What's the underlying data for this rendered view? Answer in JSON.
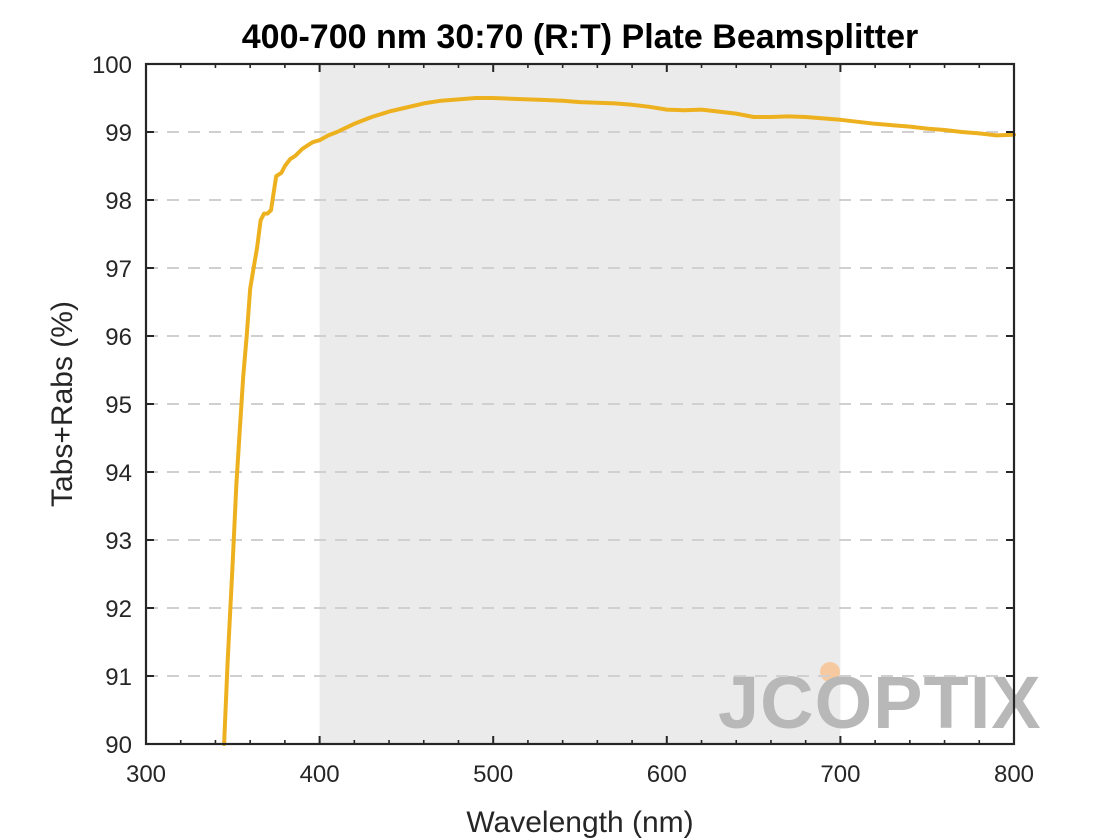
{
  "chart_data": {
    "type": "line",
    "title": "400-700 nm 30:70 (R:T) Plate Beamsplitter",
    "xlabel": "Wavelength (nm)",
    "ylabel": "Tabs+Rabs (%)",
    "xlim": [
      300,
      800
    ],
    "ylim": [
      90,
      100
    ],
    "xticks": [
      300,
      400,
      500,
      600,
      700,
      800
    ],
    "yticks": [
      90,
      91,
      92,
      93,
      94,
      95,
      96,
      97,
      98,
      99,
      100
    ],
    "grid": "horizontal dashed",
    "highlight_band": [
      400,
      700
    ],
    "series": [
      {
        "name": "",
        "color": "#EDB120",
        "x": [
          345,
          347,
          350,
          352,
          354,
          356,
          358,
          360,
          362,
          364,
          366,
          368,
          370,
          372,
          375,
          378,
          380,
          383,
          386,
          390,
          393,
          396,
          400,
          405,
          410,
          420,
          430,
          440,
          450,
          460,
          470,
          480,
          490,
          500,
          510,
          520,
          530,
          540,
          550,
          560,
          570,
          580,
          590,
          600,
          610,
          620,
          630,
          640,
          650,
          660,
          670,
          680,
          690,
          700,
          710,
          720,
          730,
          740,
          750,
          760,
          770,
          780,
          790,
          800
        ],
        "y": [
          90.0,
          91.2,
          92.7,
          93.8,
          94.6,
          95.4,
          96.0,
          96.7,
          97.0,
          97.3,
          97.7,
          97.8,
          97.8,
          97.85,
          98.35,
          98.4,
          98.5,
          98.6,
          98.65,
          98.75,
          98.8,
          98.85,
          98.88,
          98.95,
          99.0,
          99.12,
          99.22,
          99.3,
          99.36,
          99.42,
          99.46,
          99.48,
          99.5,
          99.5,
          99.49,
          99.48,
          99.47,
          99.46,
          99.44,
          99.43,
          99.42,
          99.4,
          99.37,
          99.33,
          99.32,
          99.33,
          99.3,
          99.27,
          99.22,
          99.22,
          99.23,
          99.22,
          99.2,
          99.18,
          99.15,
          99.12,
          99.1,
          99.08,
          99.05,
          99.03,
          99.0,
          98.98,
          98.95,
          98.96
        ]
      }
    ],
    "watermark": "JCOPTIX"
  },
  "colors": {
    "band": "#EBEBEB",
    "grid": "#D0D0D0",
    "axis": "#262626",
    "line": "#EDB120",
    "logo_gray": "#B8B8B8",
    "logo_accent": "#F6C9A0"
  }
}
